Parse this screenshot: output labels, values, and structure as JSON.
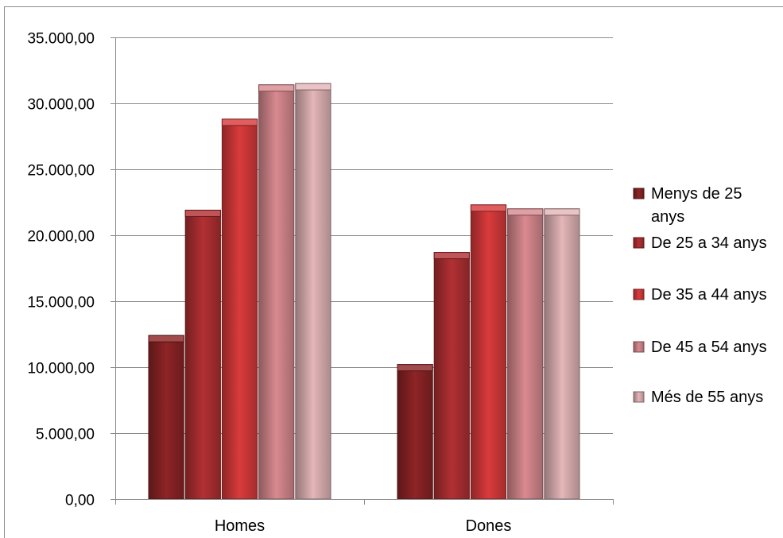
{
  "chart_data": {
    "type": "bar",
    "title": "",
    "xlabel": "",
    "ylabel": "",
    "categories": [
      "Homes",
      "Dones"
    ],
    "ylim": [
      0,
      35000
    ],
    "yticks": [
      0,
      5000,
      10000,
      15000,
      20000,
      25000,
      30000,
      35000
    ],
    "ytick_labels": [
      "0,00",
      "5.000,00",
      "10.000,00",
      "15.000,00",
      "20.000,00",
      "25.000,00",
      "30.000,00",
      "35.000,00"
    ],
    "grid": true,
    "legend_position": "right",
    "series": [
      {
        "name": "Menys de 25 anys",
        "legend_lines": [
          "Menys de 25",
          "anys"
        ],
        "color": "#8e2426",
        "values": [
          12400,
          10200
        ]
      },
      {
        "name": "De 25 a 34 anys",
        "legend_lines": [
          "De 25 a 34 anys"
        ],
        "color": "#b23033",
        "values": [
          21900,
          18700
        ]
      },
      {
        "name": "De 35 a 44 anys",
        "legend_lines": [
          "De 35 a 44 anys"
        ],
        "color": "#da3b3c",
        "values": [
          28800,
          22300
        ]
      },
      {
        "name": "De 45 a 54 anys",
        "legend_lines": [
          "De 45 a 54 anys"
        ],
        "color": "#d98a90",
        "values": [
          31400,
          22000
        ]
      },
      {
        "name": "Més de 55 anys",
        "legend_lines": [
          "Més de 55 anys"
        ],
        "color": "#e4b6b8",
        "values": [
          31500,
          22000
        ]
      }
    ]
  }
}
